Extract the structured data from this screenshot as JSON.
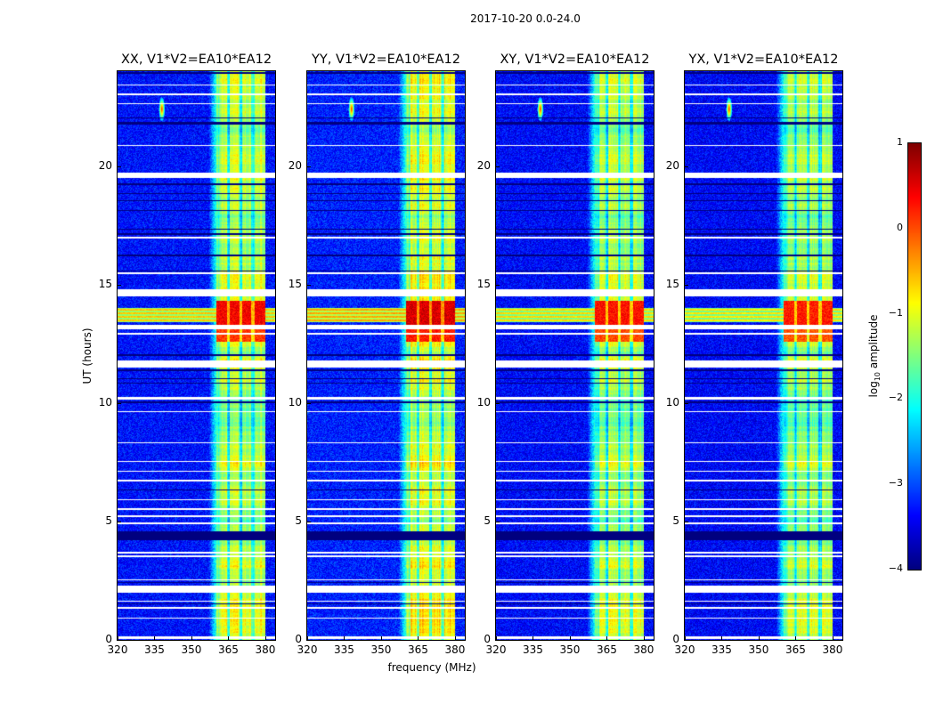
{
  "suptitle": "2017-10-20 0.0-24.0",
  "xlabel": "frequency (MHz)",
  "ylabel": "UT (hours)",
  "colorbar": {
    "label_prefix": "log",
    "label_sub": "10",
    "label_suffix": " amplitude",
    "ticks": [
      "1",
      "0",
      "−1",
      "−2",
      "−3",
      "−4"
    ],
    "range": [
      -4,
      1
    ],
    "colormap": "jet"
  },
  "chart_data": {
    "type": "heatmap",
    "panels": [
      {
        "title": "XX, V1*V2=EA10*EA12",
        "gain": 0.0
      },
      {
        "title": "YY, V1*V2=EA10*EA12",
        "gain": 0.15
      },
      {
        "title": "XY, V1*V2=EA10*EA12",
        "gain": -0.1
      },
      {
        "title": "YX, V1*V2=EA10*EA12",
        "gain": -0.15
      }
    ],
    "xlim": [
      320,
      384
    ],
    "ylim": [
      0,
      24
    ],
    "xticks": [
      320,
      335,
      350,
      365,
      380
    ],
    "yticks": [
      0,
      5,
      10,
      15,
      20
    ],
    "background_level": -3.3,
    "band": {
      "range": [
        360,
        380
      ],
      "level": -1.2,
      "gaps": [
        365,
        370,
        375
      ]
    },
    "strong_intervals": [
      [
        12.6,
        13.1,
        0.1
      ],
      [
        13.3,
        14.3,
        0.4
      ]
    ],
    "broadband_rfi": [
      [
        13.4,
        14.0,
        -0.6
      ]
    ],
    "point_source": {
      "freq": 338,
      "time": 22.4,
      "level": 0.3
    },
    "flagged_white": [
      [
        0.05,
        0.15
      ],
      [
        0.9,
        0.95
      ],
      [
        1.3,
        1.4
      ],
      [
        1.6,
        1.65
      ],
      [
        2.0,
        2.3
      ],
      [
        2.5,
        2.55
      ],
      [
        3.5,
        3.55
      ],
      [
        3.65,
        3.7
      ],
      [
        4.9,
        4.95
      ],
      [
        5.2,
        5.25
      ],
      [
        5.5,
        5.55
      ],
      [
        5.9,
        5.95
      ],
      [
        6.7,
        6.75
      ],
      [
        7.1,
        7.15
      ],
      [
        7.5,
        7.55
      ],
      [
        8.3,
        8.35
      ],
      [
        9.6,
        9.65
      ],
      [
        10.15,
        10.25
      ],
      [
        11.5,
        11.8
      ],
      [
        12.9,
        12.95
      ],
      [
        13.1,
        13.3
      ],
      [
        14.5,
        14.8
      ],
      [
        15.45,
        15.5
      ],
      [
        16.95,
        17.0
      ],
      [
        19.5,
        19.7
      ],
      [
        20.85,
        20.9
      ],
      [
        22.6,
        22.65
      ],
      [
        23.0,
        23.05
      ],
      [
        23.4,
        23.45
      ]
    ],
    "flagged_black": [
      [
        1.5,
        1.55
      ],
      [
        2.4,
        2.45
      ],
      [
        4.2,
        4.6
      ],
      [
        6.3,
        6.35
      ],
      [
        10.0,
        10.05
      ],
      [
        10.8,
        10.85
      ],
      [
        11.0,
        11.05
      ],
      [
        11.35,
        11.4
      ],
      [
        12.0,
        12.05
      ],
      [
        15.55,
        15.6
      ],
      [
        16.2,
        16.25
      ],
      [
        17.1,
        17.15
      ],
      [
        17.3,
        17.35
      ],
      [
        18.1,
        18.15
      ],
      [
        18.5,
        18.55
      ],
      [
        18.8,
        18.85
      ],
      [
        19.2,
        19.25
      ],
      [
        21.75,
        21.85
      ],
      [
        22.0,
        22.05
      ],
      [
        23.9,
        23.95
      ]
    ]
  }
}
